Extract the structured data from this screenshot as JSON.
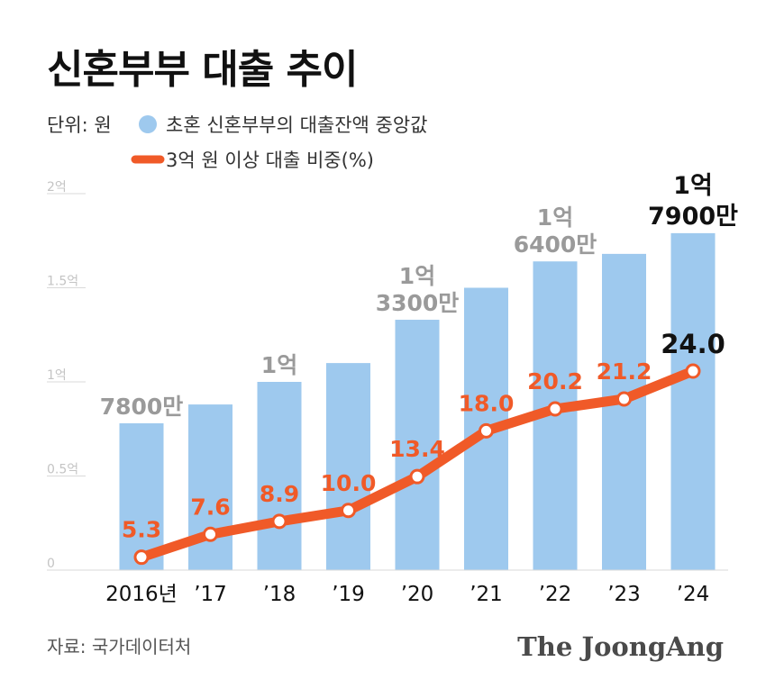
{
  "title": "신혼부부 대출 추이",
  "unit_label": "단위: 원",
  "source": "자료: 국가데이터처",
  "brand": "The JoongAng",
  "colors": {
    "bar": "#9ec9ee",
    "line": "#f05a28",
    "marker_fill": "#ffffff",
    "axis": "#d9d9d9"
  },
  "chart_data": {
    "type": "bar",
    "categories": [
      "2016년",
      "’17",
      "’18",
      "’19",
      "’20",
      "’21",
      "’22",
      "’23",
      "’24"
    ],
    "y_ticks": [
      {
        "value": 0,
        "label": "0"
      },
      {
        "value": 0.5,
        "label": "0.5억"
      },
      {
        "value": 1,
        "label": "1억"
      },
      {
        "value": 1.5,
        "label": "1.5억"
      },
      {
        "value": 2,
        "label": "2억"
      }
    ],
    "ylim": [
      0,
      2
    ],
    "y_unit": "억 원",
    "series": [
      {
        "name": "초혼 신혼부부의 대출잔액 중앙값",
        "type": "bar",
        "values": [
          0.78,
          0.88,
          1.0,
          1.1,
          1.33,
          1.5,
          1.64,
          1.68,
          1.79
        ],
        "labels": [
          "7800만",
          "",
          "1억",
          "",
          "1억 3300만",
          "",
          "1억 6400만",
          "",
          "1억 7900만"
        ]
      },
      {
        "name": "3억 원 이상 대출 비중(%)",
        "type": "line",
        "values": [
          5.3,
          7.6,
          8.9,
          10.0,
          13.4,
          18.0,
          20.2,
          21.2,
          24.0
        ],
        "labels": [
          "5.3",
          "7.6",
          "8.9",
          "10.0",
          "13.4",
          "18.0",
          "20.2",
          "21.2",
          "24.0"
        ]
      }
    ],
    "grid": false
  }
}
